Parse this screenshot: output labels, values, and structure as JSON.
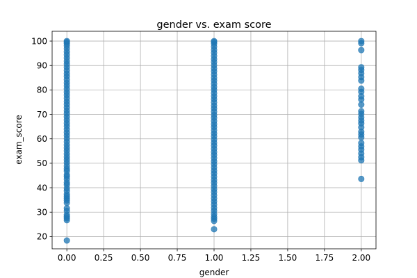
{
  "chart_data": {
    "type": "scatter",
    "title": "gender vs. exam score",
    "xlabel": "gender",
    "ylabel": "exam_score",
    "xlim": [
      -0.1,
      2.1
    ],
    "ylim": [
      15,
      104
    ],
    "grid": true,
    "xticks": [
      "0.00",
      "0.25",
      "0.50",
      "0.75",
      "1.00",
      "1.25",
      "1.50",
      "1.75",
      "2.00"
    ],
    "yticks": [
      "20",
      "30",
      "40",
      "50",
      "60",
      "70",
      "80",
      "90",
      "100"
    ],
    "point_color": "#1f77b4",
    "series": [
      {
        "points": [
          [
            0,
            18.4
          ],
          [
            0,
            26.7
          ],
          [
            0,
            27.5
          ],
          [
            0,
            28.2
          ],
          [
            0,
            29.0
          ],
          [
            0,
            30.5
          ],
          [
            0,
            31.6
          ],
          [
            0,
            33.8
          ],
          [
            0,
            34.8
          ],
          [
            0,
            35.6
          ],
          [
            0,
            36.5
          ],
          [
            0,
            37.3
          ],
          [
            0,
            38.7
          ],
          [
            0,
            39.8
          ],
          [
            0,
            41.2
          ],
          [
            0,
            42.1
          ],
          [
            0,
            43.5
          ],
          [
            0,
            44.6
          ],
          [
            0,
            45.3
          ],
          [
            0,
            46.8
          ],
          [
            0,
            47.7
          ],
          [
            0,
            48.9
          ],
          [
            0,
            50.2
          ],
          [
            0,
            51.4
          ],
          [
            0,
            52.6
          ],
          [
            0,
            53.8
          ],
          [
            0,
            55.1
          ],
          [
            0,
            56.3
          ],
          [
            0,
            57.5
          ],
          [
            0,
            58.8
          ],
          [
            0,
            60.1
          ],
          [
            0,
            61.4
          ],
          [
            0,
            62.6
          ],
          [
            0,
            63.9
          ],
          [
            0,
            65.2
          ],
          [
            0,
            66.4
          ],
          [
            0,
            67.7
          ],
          [
            0,
            69.0
          ],
          [
            0,
            70.3
          ],
          [
            0,
            71.5
          ],
          [
            0,
            72.8
          ],
          [
            0,
            74.1
          ],
          [
            0,
            75.3
          ],
          [
            0,
            76.6
          ],
          [
            0,
            77.9
          ],
          [
            0,
            79.1
          ],
          [
            0,
            80.4
          ],
          [
            0,
            81.7
          ],
          [
            0,
            82.9
          ],
          [
            0,
            84.2
          ],
          [
            0,
            85.5
          ],
          [
            0,
            86.7
          ],
          [
            0,
            88.0
          ],
          [
            0,
            89.3
          ],
          [
            0,
            90.6
          ],
          [
            0,
            91.8
          ],
          [
            0,
            93.1
          ],
          [
            0,
            94.4
          ],
          [
            0,
            95.6
          ],
          [
            0,
            96.9
          ],
          [
            0,
            98.1
          ],
          [
            0,
            99.0
          ],
          [
            0,
            99.6
          ],
          [
            0,
            100.0
          ],
          [
            1,
            23.0
          ],
          [
            1,
            26.4
          ],
          [
            1,
            27.3
          ],
          [
            1,
            28.1
          ],
          [
            1,
            29.2
          ],
          [
            1,
            30.6
          ],
          [
            1,
            31.8
          ],
          [
            1,
            33.1
          ],
          [
            1,
            34.4
          ],
          [
            1,
            35.6
          ],
          [
            1,
            36.9
          ],
          [
            1,
            38.2
          ],
          [
            1,
            39.4
          ],
          [
            1,
            40.7
          ],
          [
            1,
            42.0
          ],
          [
            1,
            43.2
          ],
          [
            1,
            44.5
          ],
          [
            1,
            45.8
          ],
          [
            1,
            47.0
          ],
          [
            1,
            48.3
          ],
          [
            1,
            49.6
          ],
          [
            1,
            50.8
          ],
          [
            1,
            52.1
          ],
          [
            1,
            53.4
          ],
          [
            1,
            54.6
          ],
          [
            1,
            55.9
          ],
          [
            1,
            57.2
          ],
          [
            1,
            58.4
          ],
          [
            1,
            59.7
          ],
          [
            1,
            61.0
          ],
          [
            1,
            62.2
          ],
          [
            1,
            63.5
          ],
          [
            1,
            64.8
          ],
          [
            1,
            66.0
          ],
          [
            1,
            67.3
          ],
          [
            1,
            68.6
          ],
          [
            1,
            69.8
          ],
          [
            1,
            71.1
          ],
          [
            1,
            72.4
          ],
          [
            1,
            73.6
          ],
          [
            1,
            74.9
          ],
          [
            1,
            76.2
          ],
          [
            1,
            77.4
          ],
          [
            1,
            78.7
          ],
          [
            1,
            80.0
          ],
          [
            1,
            81.2
          ],
          [
            1,
            82.5
          ],
          [
            1,
            83.8
          ],
          [
            1,
            85.0
          ],
          [
            1,
            86.3
          ],
          [
            1,
            87.6
          ],
          [
            1,
            88.8
          ],
          [
            1,
            90.1
          ],
          [
            1,
            91.4
          ],
          [
            1,
            92.6
          ],
          [
            1,
            93.9
          ],
          [
            1,
            95.2
          ],
          [
            1,
            96.4
          ],
          [
            1,
            97.7
          ],
          [
            1,
            98.9
          ],
          [
            1,
            99.6
          ],
          [
            1,
            100.0
          ],
          [
            2,
            43.6
          ],
          [
            2,
            51.2
          ],
          [
            2,
            52.5
          ],
          [
            2,
            54.0
          ],
          [
            2,
            55.6
          ],
          [
            2,
            56.9
          ],
          [
            2,
            58.3
          ],
          [
            2,
            60.6
          ],
          [
            2,
            61.8
          ],
          [
            2,
            62.9
          ],
          [
            2,
            64.7
          ],
          [
            2,
            66.3
          ],
          [
            2,
            67.5
          ],
          [
            2,
            68.8
          ],
          [
            2,
            70.2
          ],
          [
            2,
            71.3
          ],
          [
            2,
            74.0
          ],
          [
            2,
            76.1
          ],
          [
            2,
            77.4
          ],
          [
            2,
            79.2
          ],
          [
            2,
            80.5
          ],
          [
            2,
            83.8
          ],
          [
            2,
            85.3
          ],
          [
            2,
            86.8
          ],
          [
            2,
            88.2
          ],
          [
            2,
            89.3
          ],
          [
            2,
            96.3
          ],
          [
            2,
            99.1
          ],
          [
            2,
            100.0
          ]
        ]
      }
    ]
  }
}
